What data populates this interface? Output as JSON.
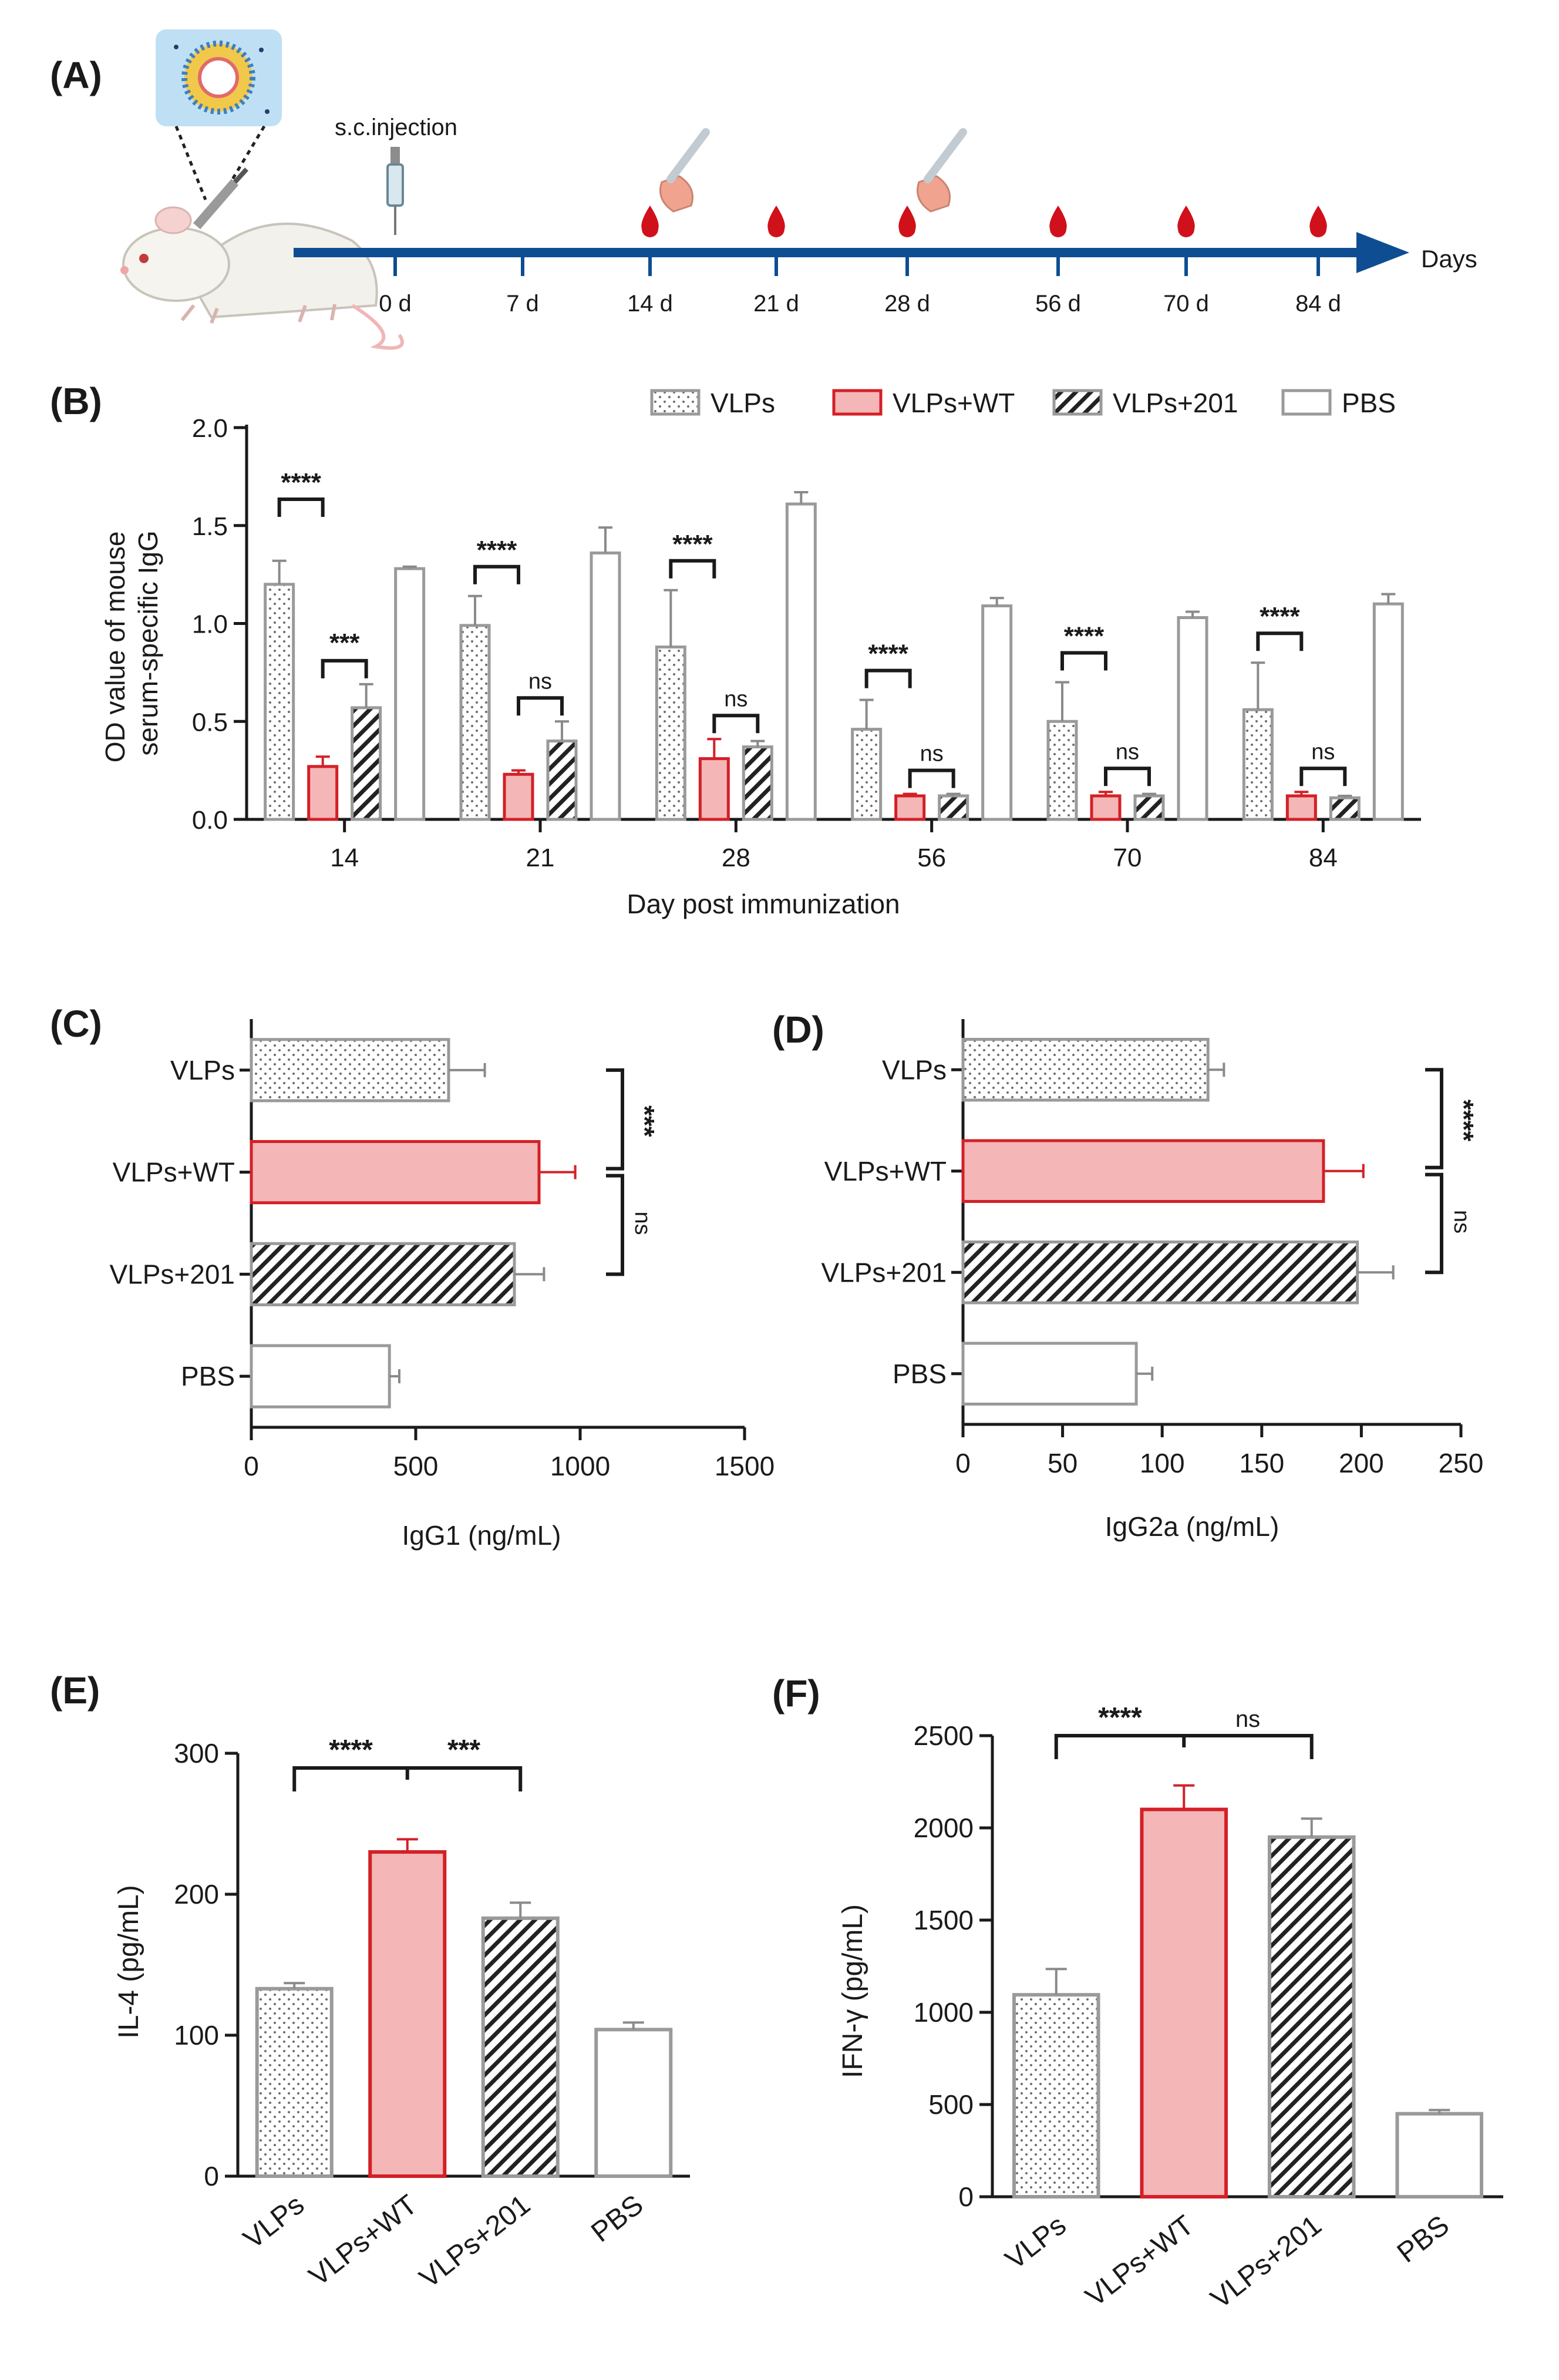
{
  "colors": {
    "red": "#d32027",
    "pink": "#f4b6b6",
    "grey": "#9a9a9a",
    "navy": "#0e4d92"
  },
  "timeline": {
    "label": "(A)",
    "injection_label": "s.c.injection",
    "axis_label": "Days",
    "days": [
      "0 d",
      "7 d",
      "14 d",
      "21 d",
      "28 d",
      "56 d",
      "70 d",
      "84 d"
    ],
    "blood_days": [
      "14 d",
      "21 d",
      "28 d",
      "56 d",
      "70 d",
      "84 d"
    ],
    "tube_days": [
      "14 d",
      "28 d"
    ]
  },
  "panelB": {
    "label": "(B)",
    "legend": [
      "VLPs",
      "VLPs+WT",
      "VLPs+201",
      "PBS"
    ],
    "ylabel_line1": "OD value of mouse",
    "ylabel_line2": "serum-specific IgG",
    "xlabel": "Day post immunization",
    "yticks": [
      "0.0",
      "0.5",
      "1.0",
      "1.5",
      "2.0"
    ],
    "sig_top": [
      "****",
      "****",
      "****",
      "****",
      "****",
      "****"
    ],
    "sig_bottom": [
      "***",
      "ns",
      "ns",
      "ns",
      "ns",
      "ns"
    ]
  },
  "panelC": {
    "label": "(C)",
    "xlabel": "IgG1 (ng/mL)",
    "xticks": [
      "0",
      "500",
      "1000",
      "1500"
    ],
    "sig": [
      "***",
      "ns"
    ]
  },
  "panelD": {
    "label": "(D)",
    "xlabel": "IgG2a (ng/mL)",
    "xticks": [
      "0",
      "50",
      "100",
      "150",
      "200",
      "250"
    ],
    "sig": [
      "****",
      "ns"
    ]
  },
  "panelE": {
    "label": "(E)",
    "ylabel": "IL-4 (pg/mL)",
    "yticks": [
      "0",
      "100",
      "200",
      "300"
    ],
    "sig": [
      "****",
      "***"
    ]
  },
  "panelF": {
    "label": "(F)",
    "ylabel": "IFN-γ (pg/mL)",
    "yticks": [
      "0",
      "500",
      "1000",
      "1500",
      "2000",
      "2500"
    ],
    "sig": [
      "****",
      "ns"
    ]
  },
  "chart_data": [
    {
      "panel": "B",
      "type": "bar",
      "categories": [
        "14",
        "21",
        "28",
        "56",
        "70",
        "84"
      ],
      "ylim": [
        0,
        2.0
      ],
      "series": [
        {
          "name": "VLPs",
          "values": [
            1.2,
            0.99,
            0.88,
            0.46,
            0.5,
            0.56
          ],
          "errors": [
            0.12,
            0.15,
            0.29,
            0.15,
            0.2,
            0.24
          ]
        },
        {
          "name": "VLPs+WT",
          "values": [
            0.27,
            0.23,
            0.31,
            0.12,
            0.12,
            0.12
          ],
          "errors": [
            0.05,
            0.02,
            0.1,
            0.01,
            0.02,
            0.02
          ]
        },
        {
          "name": "VLPs+201",
          "values": [
            0.57,
            0.4,
            0.37,
            0.12,
            0.12,
            0.11
          ],
          "errors": [
            0.12,
            0.1,
            0.03,
            0.01,
            0.01,
            0.01
          ]
        },
        {
          "name": "PBS",
          "values": [
            1.28,
            1.36,
            1.61,
            1.09,
            1.03,
            1.1
          ],
          "errors": [
            0.01,
            0.13,
            0.06,
            0.04,
            0.03,
            0.05
          ]
        }
      ]
    },
    {
      "panel": "C",
      "type": "bar",
      "orientation": "horizontal",
      "categories": [
        "VLPs",
        "VLPs+WT",
        "VLPs+201",
        "PBS"
      ],
      "values": [
        600,
        875,
        800,
        420
      ],
      "errors": [
        110,
        110,
        90,
        30
      ],
      "xlim": [
        0,
        1500
      ]
    },
    {
      "panel": "D",
      "type": "bar",
      "orientation": "horizontal",
      "categories": [
        "VLPs",
        "VLPs+WT",
        "VLPs+201",
        "PBS"
      ],
      "values": [
        123,
        181,
        198,
        87
      ],
      "errors": [
        8,
        20,
        18,
        8
      ],
      "xlim": [
        0,
        250
      ]
    },
    {
      "panel": "E",
      "type": "bar",
      "categories": [
        "VLPs",
        "VLPs+WT",
        "VLPs+201",
        "PBS"
      ],
      "values": [
        133,
        230,
        183,
        104
      ],
      "errors": [
        4,
        9,
        11,
        5
      ],
      "ylim": [
        0,
        300
      ]
    },
    {
      "panel": "F",
      "type": "bar",
      "categories": [
        "VLPs",
        "VLPs+WT",
        "VLPs+201",
        "PBS"
      ],
      "values": [
        1095,
        2100,
        1950,
        450
      ],
      "errors": [
        140,
        130,
        100,
        20
      ],
      "ylim": [
        0,
        2500
      ]
    }
  ]
}
